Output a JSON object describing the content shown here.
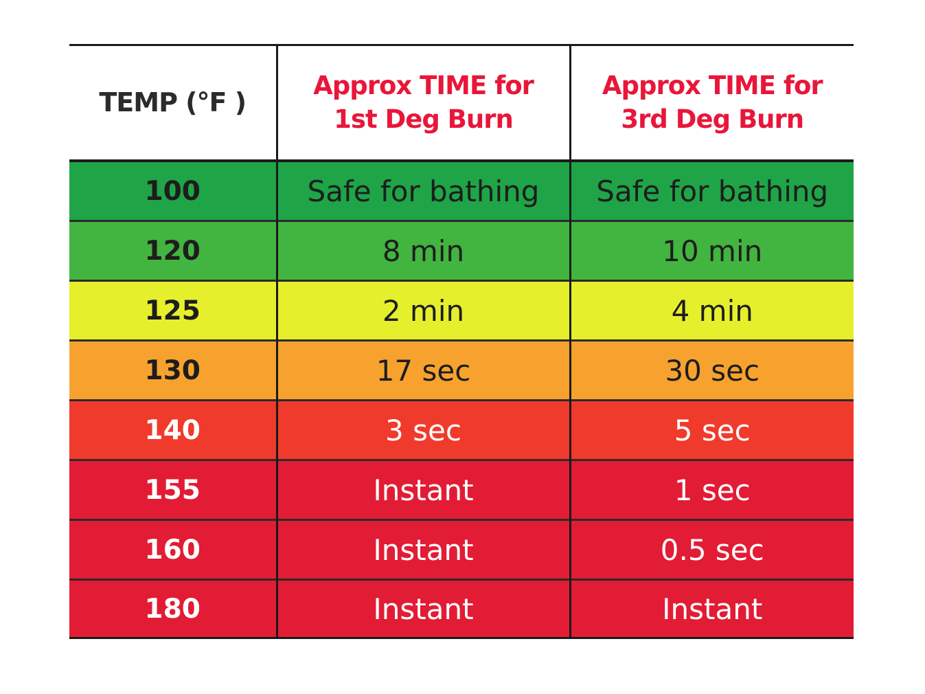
{
  "header": {
    "temp": "TEMP (°F )",
    "first_line1": "Approx TIME for",
    "first_line2": "1st Deg Burn",
    "third_line1": "Approx TIME for",
    "third_line2": "3rd Deg Burn"
  },
  "rows": [
    {
      "temp": "100",
      "first": "Safe for bathing",
      "third": "Safe for bathing",
      "color": "#1fa447"
    },
    {
      "temp": "120",
      "first": "8 min",
      "third": "10 min",
      "color": "#42b440"
    },
    {
      "temp": "125",
      "first": "2 min",
      "third": "4 min",
      "color": "#e6ef2c"
    },
    {
      "temp": "130",
      "first": "17 sec",
      "third": "30 sec",
      "color": "#f7a22f"
    },
    {
      "temp": "140",
      "first": "3 sec",
      "third": "5 sec",
      "color": "#f03a2c"
    },
    {
      "temp": "155",
      "first": "Instant",
      "third": "1 sec",
      "color": "#e21c34"
    },
    {
      "temp": "160",
      "first": "Instant",
      "third": "0.5 sec",
      "color": "#e21c34"
    },
    {
      "temp": "180",
      "first": "Instant",
      "third": "Instant",
      "color": "#e21c34"
    }
  ],
  "colors": {
    "header_text_red": "#e8173a",
    "header_text_dark": "#2b2b2b",
    "border": "#1a1a1a"
  }
}
